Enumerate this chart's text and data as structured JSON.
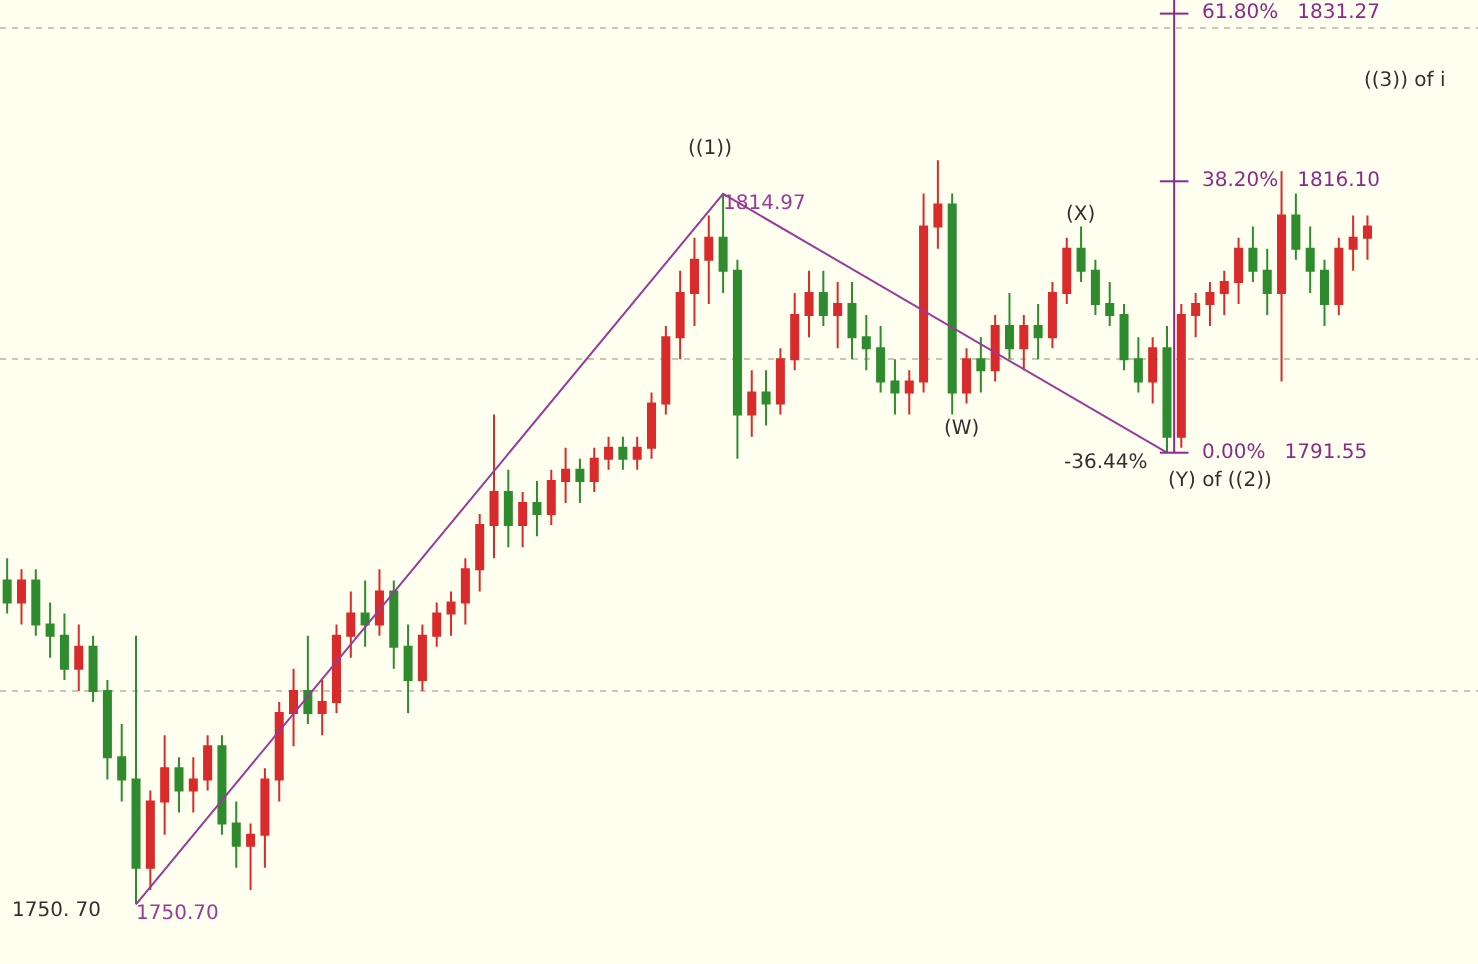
{
  "chart_data": {
    "type": "candlestick",
    "categories": [
      null,
      null,
      null,
      null,
      null,
      null,
      null,
      null,
      null,
      null,
      null,
      null,
      null,
      null,
      null,
      null,
      null,
      null,
      null,
      null,
      null,
      null,
      null,
      null,
      null,
      null,
      null,
      null,
      null,
      null,
      null,
      null,
      null,
      null,
      null,
      null,
      null,
      null,
      null,
      null,
      null,
      null,
      null,
      null,
      null,
      null,
      null,
      null,
      null,
      null,
      null,
      null,
      null,
      null,
      null,
      null,
      null,
      null,
      null,
      null,
      null,
      null,
      null,
      null,
      null,
      null,
      null,
      null,
      null,
      null,
      null,
      null,
      null,
      null,
      null,
      null,
      null,
      null,
      null,
      null,
      null,
      null,
      null,
      null,
      null,
      null,
      null,
      null,
      null,
      null,
      null,
      null,
      null,
      null,
      null,
      null
    ],
    "ohlc": [
      [
        1780,
        1782,
        1777,
        1778
      ],
      [
        1778,
        1781,
        1776,
        1780
      ],
      [
        1780,
        1781,
        1775,
        1776
      ],
      [
        1776,
        1778,
        1773,
        1775
      ],
      [
        1775,
        1777,
        1771,
        1772
      ],
      [
        1772,
        1776,
        1770,
        1774
      ],
      [
        1774,
        1775,
        1769,
        1770
      ],
      [
        1770,
        1771,
        1762,
        1764
      ],
      [
        1764,
        1767,
        1760,
        1762
      ],
      [
        1762,
        1775,
        1750.7,
        1754
      ],
      [
        1754,
        1761,
        1752,
        1760
      ],
      [
        1760,
        1766,
        1757,
        1763
      ],
      [
        1763,
        1764,
        1759,
        1761
      ],
      [
        1761,
        1764,
        1759,
        1762
      ],
      [
        1762,
        1766,
        1761,
        1765
      ],
      [
        1765,
        1766,
        1757,
        1758
      ],
      [
        1758,
        1760,
        1754,
        1756
      ],
      [
        1756,
        1758,
        1752,
        1757
      ],
      [
        1757,
        1763,
        1754,
        1762
      ],
      [
        1762,
        1769,
        1760,
        1768
      ],
      [
        1768,
        1772,
        1765,
        1770
      ],
      [
        1770,
        1775,
        1767,
        1768
      ],
      [
        1768,
        1771,
        1766,
        1769
      ],
      [
        1769,
        1776,
        1768,
        1775
      ],
      [
        1775,
        1779,
        1773,
        1777
      ],
      [
        1777,
        1780,
        1774,
        1776
      ],
      [
        1776,
        1781,
        1775,
        1779
      ],
      [
        1779,
        1780,
        1772,
        1774
      ],
      [
        1774,
        1776,
        1768,
        1771
      ],
      [
        1771,
        1776,
        1770,
        1775
      ],
      [
        1775,
        1778,
        1774,
        1777
      ],
      [
        1777,
        1779,
        1775,
        1778
      ],
      [
        1778,
        1782,
        1776,
        1781
      ],
      [
        1781,
        1786,
        1779,
        1785
      ],
      [
        1785,
        1795,
        1782,
        1788
      ],
      [
        1788,
        1790,
        1783,
        1785
      ],
      [
        1785,
        1788,
        1783,
        1787
      ],
      [
        1787,
        1789,
        1784,
        1786
      ],
      [
        1786,
        1790,
        1785,
        1789
      ],
      [
        1789,
        1792,
        1787,
        1790
      ],
      [
        1790,
        1791,
        1787,
        1789
      ],
      [
        1789,
        1792,
        1788,
        1791
      ],
      [
        1791,
        1793,
        1790,
        1792
      ],
      [
        1792,
        1793,
        1790,
        1791
      ],
      [
        1791,
        1793,
        1790,
        1792
      ],
      [
        1792,
        1797,
        1791,
        1796
      ],
      [
        1796,
        1803,
        1795,
        1802
      ],
      [
        1802,
        1808,
        1800,
        1806
      ],
      [
        1806,
        1811,
        1803,
        1809
      ],
      [
        1809,
        1813,
        1805,
        1811
      ],
      [
        1811,
        1814.97,
        1806,
        1808
      ],
      [
        1808,
        1809,
        1791,
        1795
      ],
      [
        1795,
        1799,
        1793,
        1797
      ],
      [
        1797,
        1799,
        1794,
        1796
      ],
      [
        1796,
        1801,
        1795,
        1800
      ],
      [
        1800,
        1806,
        1799,
        1804
      ],
      [
        1804,
        1808,
        1802,
        1806
      ],
      [
        1806,
        1808,
        1803,
        1804
      ],
      [
        1804,
        1807,
        1801,
        1805
      ],
      [
        1805,
        1807,
        1800,
        1802
      ],
      [
        1802,
        1804,
        1799,
        1801
      ],
      [
        1801,
        1803,
        1797,
        1798
      ],
      [
        1798,
        1800,
        1795,
        1797
      ],
      [
        1797,
        1799,
        1795,
        1798
      ],
      [
        1798,
        1815,
        1797,
        1812
      ],
      [
        1812,
        1818,
        1810,
        1814
      ],
      [
        1814,
        1815,
        1795,
        1797
      ],
      [
        1797,
        1801,
        1796,
        1800
      ],
      [
        1800,
        1802,
        1797,
        1799
      ],
      [
        1799,
        1804,
        1798,
        1803
      ],
      [
        1803,
        1806,
        1800,
        1801
      ],
      [
        1801,
        1804,
        1799,
        1803
      ],
      [
        1803,
        1805,
        1800,
        1802
      ],
      [
        1802,
        1807,
        1801,
        1806
      ],
      [
        1806,
        1811,
        1805,
        1810
      ],
      [
        1810,
        1812,
        1807,
        1808
      ],
      [
        1808,
        1809,
        1804,
        1805
      ],
      [
        1805,
        1807,
        1803,
        1804
      ],
      [
        1804,
        1805,
        1799,
        1800
      ],
      [
        1800,
        1802,
        1797,
        1798
      ],
      [
        1798,
        1802,
        1796,
        1801
      ],
      [
        1801,
        1803,
        1791.55,
        1793
      ],
      [
        1793,
        1805,
        1792,
        1804
      ],
      [
        1804,
        1806,
        1802,
        1805
      ],
      [
        1805,
        1807,
        1803,
        1806
      ],
      [
        1806,
        1808,
        1804,
        1807
      ],
      [
        1807,
        1811,
        1805,
        1810
      ],
      [
        1810,
        1812,
        1807,
        1808
      ],
      [
        1808,
        1810,
        1804,
        1806
      ],
      [
        1806,
        1817,
        1798,
        1813
      ],
      [
        1813,
        1815,
        1809,
        1810
      ],
      [
        1810,
        1812,
        1806,
        1808
      ],
      [
        1808,
        1809,
        1803,
        1805
      ],
      [
        1805,
        1811,
        1804,
        1810
      ],
      [
        1810,
        1813,
        1808,
        1811
      ],
      [
        1811,
        1813,
        1809,
        1812
      ]
    ],
    "colors": [
      "#2e8b2e",
      "#d92b2b",
      "#2e8b2e",
      "#2e8b2e",
      "#2e8b2e",
      "#d92b2b",
      "#2e8b2e",
      "#2e8b2e",
      "#2e8b2e",
      "#2e8b2e",
      "#d92b2b",
      "#d92b2b",
      "#2e8b2e",
      "#d92b2b",
      "#d92b2b",
      "#2e8b2e",
      "#2e8b2e",
      "#d92b2b",
      "#d92b2b",
      "#d92b2b",
      "#d92b2b",
      "#2e8b2e",
      "#d92b2b",
      "#d92b2b",
      "#d92b2b",
      "#2e8b2e",
      "#d92b2b",
      "#2e8b2e",
      "#2e8b2e",
      "#d92b2b",
      "#d92b2b",
      "#d92b2b",
      "#d92b2b",
      "#d92b2b",
      "#d92b2b",
      "#2e8b2e",
      "#d92b2b",
      "#2e8b2e",
      "#d92b2b",
      "#d92b2b",
      "#2e8b2e",
      "#d92b2b",
      "#d92b2b",
      "#2e8b2e",
      "#d92b2b",
      "#d92b2b",
      "#d92b2b",
      "#d92b2b",
      "#d92b2b",
      "#d92b2b",
      "#2e8b2e",
      "#2e8b2e",
      "#d92b2b",
      "#2e8b2e",
      "#d92b2b",
      "#d92b2b",
      "#d92b2b",
      "#2e8b2e",
      "#d92b2b",
      "#2e8b2e",
      "#2e8b2e",
      "#2e8b2e",
      "#2e8b2e",
      "#d92b2b",
      "#d92b2b",
      "#d92b2b",
      "#2e8b2e",
      "#d92b2b",
      "#2e8b2e",
      "#d92b2b",
      "#2e8b2e",
      "#d92b2b",
      "#2e8b2e",
      "#d92b2b",
      "#d92b2b",
      "#2e8b2e",
      "#2e8b2e",
      "#2e8b2e",
      "#2e8b2e",
      "#2e8b2e",
      "#d92b2b",
      "#2e8b2e",
      "#d92b2b",
      "#d92b2b",
      "#d92b2b",
      "#d92b2b",
      "#d92b2b",
      "#2e8b2e",
      "#2e8b2e",
      "#d92b2b",
      "#2e8b2e",
      "#2e8b2e",
      "#2e8b2e",
      "#d92b2b",
      "#d92b2b",
      "#d92b2b"
    ],
    "series": [
      {
        "type": "line",
        "color": "#9a3a9a",
        "values": [
          null,
          null,
          null,
          null,
          null,
          null,
          null,
          null,
          null,
          1750.7,
          null,
          null,
          null,
          null,
          null,
          null,
          null,
          null,
          null,
          null,
          null,
          null,
          null,
          null,
          null,
          null,
          null,
          null,
          null,
          null,
          null,
          null,
          null,
          null,
          null,
          null,
          null,
          null,
          null,
          null,
          null,
          null,
          null,
          null,
          null,
          null,
          null,
          null,
          null,
          null,
          1814.97,
          null,
          null,
          null,
          null,
          null,
          null,
          null,
          null,
          null,
          null,
          null,
          null,
          null,
          null,
          null,
          null,
          null,
          null,
          null,
          null,
          null,
          null,
          null,
          null,
          null,
          null,
          null,
          null,
          null,
          null,
          1791.55,
          null,
          null,
          null,
          null,
          null,
          null,
          null,
          null,
          null,
          null,
          null,
          null,
          null,
          null
        ],
        "value_labels": [
          null,
          null,
          null,
          null,
          null,
          null,
          null,
          null,
          null,
          "1750.70",
          null,
          null,
          null,
          null,
          null,
          null,
          null,
          null,
          null,
          null,
          null,
          null,
          null,
          null,
          null,
          null,
          null,
          null,
          null,
          null,
          null,
          null,
          null,
          null,
          null,
          null,
          null,
          null,
          null,
          null,
          null,
          null,
          null,
          null,
          null,
          null,
          null,
          null,
          null,
          null,
          "1814.97",
          null,
          null,
          null,
          null,
          null,
          null,
          null,
          null,
          null,
          null,
          null,
          null,
          null,
          null,
          null,
          null,
          null,
          null,
          null,
          null,
          null,
          null,
          null,
          null,
          null,
          null,
          null,
          null,
          null,
          null,
          null,
          null,
          null,
          null,
          null,
          null,
          null,
          null,
          null,
          null,
          null,
          null,
          null,
          null,
          null
        ]
      }
    ],
    "ref_lines": [
      {
        "axis": "y",
        "value": 1831.27,
        "label": "61.80%   1831.27",
        "color": "#8b2a8b"
      },
      {
        "axis": "y",
        "value": 1816.1,
        "label": "38.20%   1816.10",
        "color": "#8b2a8b"
      },
      {
        "axis": "y",
        "value": 1791.55,
        "label": "0.00%   1791.55",
        "color": "#8b2a8b"
      }
    ],
    "annotations": [
      "1750. 70",
      "((1))",
      "(W)",
      "(X)",
      "-36.44%",
      "(Y) of ((2))",
      "((3)) of i"
    ],
    "ylim": [
      1745.3,
      1832.5
    ],
    "yticks": [
      {
        "value": 1770,
        "label": null
      },
      {
        "value": 1800,
        "label": null
      },
      {
        "value": 1830,
        "label": null
      }
    ],
    "grid": "y"
  }
}
